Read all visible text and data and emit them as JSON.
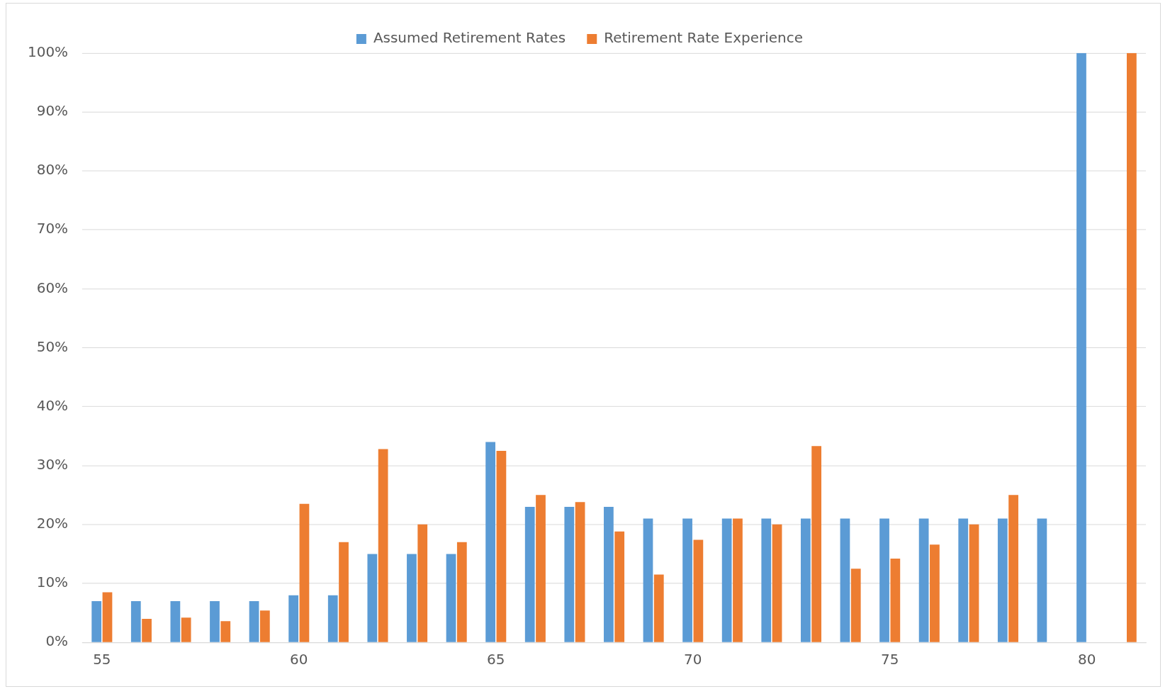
{
  "chart_data": {
    "type": "bar",
    "categories": [
      "55",
      null,
      null,
      null,
      null,
      "60",
      null,
      null,
      null,
      null,
      "65",
      null,
      null,
      null,
      null,
      "70",
      null,
      null,
      null,
      null,
      "75",
      null,
      null,
      null,
      null,
      "80",
      null
    ],
    "series": [
      {
        "name": "Assumed Retirement Rates",
        "color": "#5b9bd5",
        "values": [
          7,
          7,
          7,
          7,
          7,
          8,
          8,
          15,
          15,
          15,
          34,
          23,
          23,
          23,
          21,
          21,
          21,
          21,
          21,
          21,
          21,
          21,
          21,
          21,
          21,
          100,
          null
        ]
      },
      {
        "name": "Retirement Rate Experience",
        "color": "#ed7d31",
        "values": [
          8.5,
          4,
          4.2,
          3.6,
          5.4,
          23.5,
          17,
          32.8,
          20,
          17,
          32.5,
          25,
          23.8,
          18.8,
          11.5,
          17.4,
          21,
          20,
          33.3,
          12.5,
          14.2,
          16.6,
          20,
          25,
          null,
          null,
          100
        ]
      }
    ],
    "ylim": [
      0,
      100
    ],
    "yticks": [
      {
        "value": 0,
        "label": "0%"
      },
      {
        "value": 10,
        "label": "10%"
      },
      {
        "value": 20,
        "label": "20%"
      },
      {
        "value": 30,
        "label": "30%"
      },
      {
        "value": 40,
        "label": "40%"
      },
      {
        "value": 50,
        "label": "50%"
      },
      {
        "value": 60,
        "label": "60%"
      },
      {
        "value": 70,
        "label": "70%"
      },
      {
        "value": 80,
        "label": "80%"
      },
      {
        "value": 90,
        "label": "90%"
      },
      {
        "value": 100,
        "label": "100%"
      }
    ],
    "grid": "y",
    "legend": "top"
  }
}
